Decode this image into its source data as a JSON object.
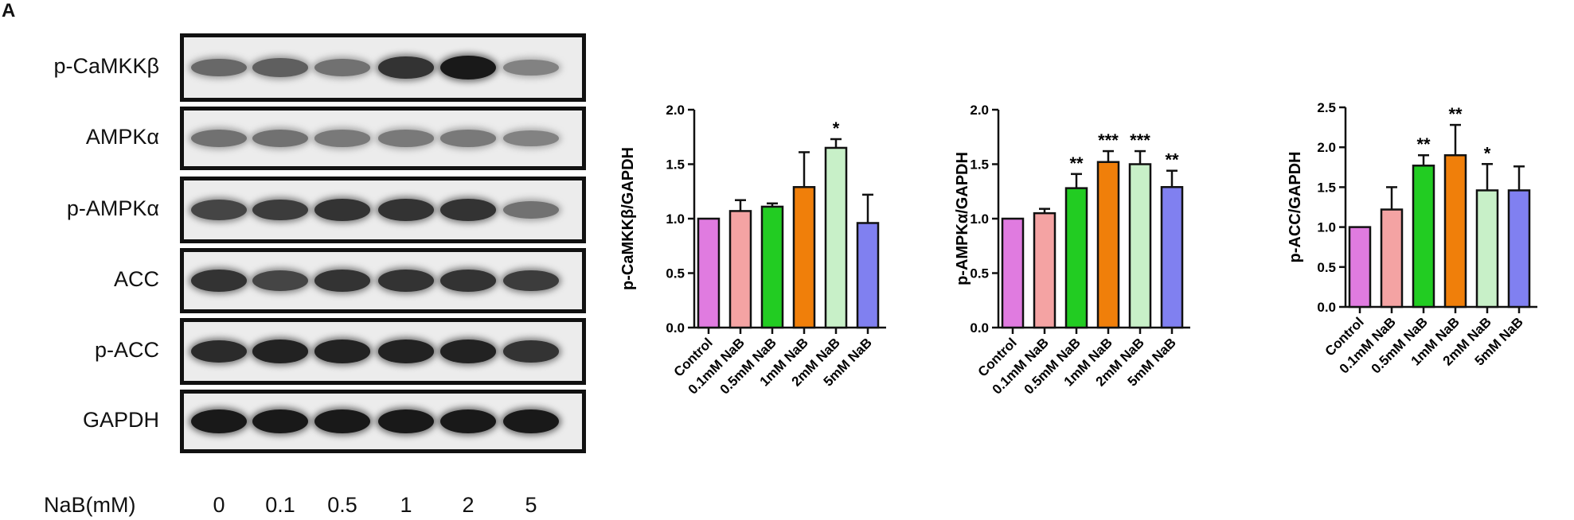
{
  "panel_label": "A",
  "blot": {
    "rows": [
      {
        "label": "p-CaMKKβ",
        "intensity": [
          0.55,
          0.6,
          0.5,
          0.85,
          1.0,
          0.4
        ]
      },
      {
        "label": "AMPKα",
        "intensity": [
          0.5,
          0.5,
          0.45,
          0.45,
          0.45,
          0.4
        ]
      },
      {
        "label": "p-AMPKα",
        "intensity": [
          0.75,
          0.8,
          0.85,
          0.85,
          0.85,
          0.5
        ]
      },
      {
        "label": "ACC",
        "intensity": [
          0.85,
          0.75,
          0.85,
          0.85,
          0.85,
          0.8
        ]
      },
      {
        "label": "p-ACC",
        "intensity": [
          0.9,
          0.95,
          0.95,
          0.95,
          0.95,
          0.85
        ]
      },
      {
        "label": "GAPDH",
        "intensity": [
          1.0,
          1.0,
          1.0,
          1.0,
          1.0,
          1.0
        ]
      }
    ],
    "dose_label": "NaB(mM)",
    "doses": [
      "0",
      "0.1",
      "0.5",
      "1",
      "2",
      "5"
    ]
  },
  "chart_data": [
    {
      "type": "bar",
      "categories": [
        "Control",
        "0.1mM NaB",
        "0.5mM NaB",
        "1mM NaB",
        "2mM NaB",
        "5mM NaB"
      ],
      "values": [
        1.0,
        1.07,
        1.11,
        1.29,
        1.65,
        0.96
      ],
      "errors": [
        0.0,
        0.1,
        0.03,
        0.32,
        0.08,
        0.26
      ],
      "significance": [
        "",
        "",
        "",
        "",
        "*",
        ""
      ],
      "colors": [
        "#e07be0",
        "#f4a3a3",
        "#22cc22",
        "#f07f0a",
        "#c8f0c8",
        "#8080f0"
      ],
      "ylabel": "p-CaMKKβ/GAPDH",
      "ylim": [
        0,
        2.0
      ],
      "yticks": [
        "0.0",
        "0.5",
        "1.0",
        "1.5",
        "2.0"
      ]
    },
    {
      "type": "bar",
      "categories": [
        "Control",
        "0.1mM NaB",
        "0.5mM NaB",
        "1mM NaB",
        "2mM NaB",
        "5mM NaB"
      ],
      "values": [
        1.0,
        1.05,
        1.28,
        1.52,
        1.5,
        1.29
      ],
      "errors": [
        0.0,
        0.04,
        0.13,
        0.1,
        0.12,
        0.15
      ],
      "significance": [
        "",
        "",
        "**",
        "***",
        "***",
        "**"
      ],
      "colors": [
        "#e07be0",
        "#f4a3a3",
        "#22cc22",
        "#f07f0a",
        "#c8f0c8",
        "#8080f0"
      ],
      "ylabel": "p-AMPKα/GAPDH",
      "ylim": [
        0,
        2.0
      ],
      "yticks": [
        "0.0",
        "0.5",
        "1.0",
        "1.5",
        "2.0"
      ]
    },
    {
      "type": "bar",
      "categories": [
        "Control",
        "0.1mM NaB",
        "0.5mM NaB",
        "1mM NaB",
        "2mM NaB",
        "5mM NaB"
      ],
      "values": [
        1.0,
        1.22,
        1.77,
        1.9,
        1.46,
        1.46
      ],
      "errors": [
        0.0,
        0.28,
        0.13,
        0.38,
        0.33,
        0.3
      ],
      "significance": [
        "",
        "",
        "**",
        "**",
        "*",
        ""
      ],
      "colors": [
        "#e07be0",
        "#f4a3a3",
        "#22cc22",
        "#f07f0a",
        "#c8f0c8",
        "#8080f0"
      ],
      "ylabel": "p-ACC/GAPDH",
      "ylim": [
        0,
        2.5
      ],
      "yticks": [
        "0.0",
        "0.5",
        "1.0",
        "1.5",
        "2.0",
        "2.5"
      ]
    }
  ]
}
